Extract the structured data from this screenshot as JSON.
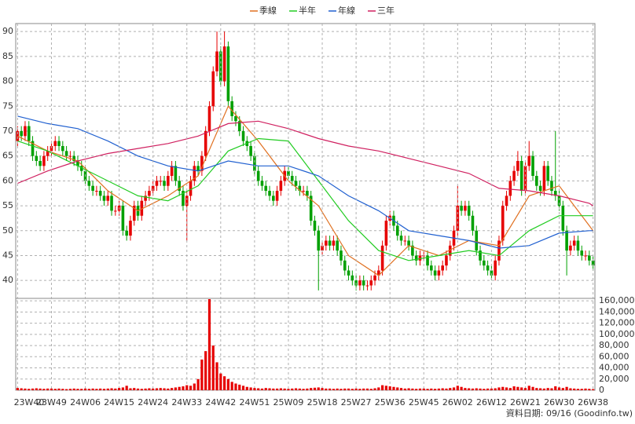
{
  "chart_data": [
    {
      "type": "candlestick",
      "up_color": "#e60000",
      "down_color": "#00a000",
      "ylim": [
        36.4,
        91.6
      ],
      "yticks": [
        40,
        45,
        50,
        55,
        60,
        65,
        70,
        75,
        80,
        85,
        90
      ],
      "grid": true,
      "legend": "top",
      "open": [
        68,
        70,
        69,
        71,
        68,
        65,
        64,
        63,
        65,
        66,
        67,
        68,
        67,
        66,
        65,
        65,
        64,
        63,
        62,
        60,
        59,
        58,
        58,
        57,
        56,
        57,
        54,
        54,
        55,
        50,
        49,
        52,
        55,
        53,
        56,
        57,
        58,
        59,
        60,
        60,
        59,
        61,
        63,
        60,
        58,
        55,
        57,
        60,
        63,
        62,
        65,
        70,
        75,
        82,
        86,
        80,
        87,
        76,
        73,
        72,
        70,
        68,
        67,
        65,
        62,
        60,
        59,
        58,
        57,
        56,
        58,
        60,
        62,
        61,
        60,
        59,
        58,
        58,
        57,
        52,
        50,
        46,
        47,
        48,
        47,
        48,
        46,
        44,
        42,
        41,
        40,
        39,
        40,
        39,
        39,
        40,
        41,
        42,
        47,
        52,
        53,
        51,
        49,
        48,
        48,
        47,
        45,
        44,
        45,
        45,
        43,
        42,
        41,
        42,
        43,
        45,
        47,
        50,
        55,
        54,
        55,
        53,
        50,
        46,
        44,
        43,
        42,
        41,
        44,
        48,
        55,
        57,
        60,
        62,
        64,
        58,
        63,
        65,
        61,
        59,
        58,
        63,
        60,
        58,
        57,
        55,
        50,
        46,
        47,
        48,
        46,
        45,
        45,
        44
      ],
      "high": [
        71,
        71,
        72,
        72,
        69,
        66,
        65,
        66,
        67,
        68,
        69,
        69,
        68,
        67,
        66,
        66,
        65,
        64,
        63,
        61,
        60,
        59,
        59,
        58,
        58,
        58,
        55,
        56,
        56,
        51,
        53,
        56,
        56,
        57,
        58,
        59,
        60,
        61,
        61,
        61,
        62,
        64,
        64,
        61,
        59,
        58,
        61,
        64,
        64,
        66,
        71,
        76,
        83,
        90,
        87,
        90,
        88,
        77,
        74,
        73,
        71,
        69,
        68,
        66,
        63,
        61,
        60,
        59,
        58,
        59,
        61,
        63,
        63,
        62,
        61,
        60,
        59,
        59,
        58,
        53,
        51,
        48,
        49,
        49,
        49,
        49,
        47,
        45,
        43,
        42,
        41,
        41,
        41,
        40,
        41,
        42,
        43,
        48,
        53,
        54,
        54,
        52,
        50,
        49,
        49,
        48,
        46,
        46,
        46,
        46,
        44,
        43,
        43,
        44,
        46,
        48,
        51,
        59,
        56,
        56,
        56,
        54,
        51,
        47,
        45,
        44,
        43,
        45,
        49,
        56,
        58,
        61,
        63,
        66,
        65,
        64,
        68,
        66,
        62,
        60,
        64,
        64,
        61,
        70,
        58,
        56,
        51,
        48,
        49,
        49,
        47,
        46,
        46,
        45
      ],
      "low": [
        67,
        68,
        68,
        67,
        64,
        63,
        62,
        62,
        64,
        65,
        66,
        66,
        65,
        64,
        64,
        63,
        62,
        61,
        59,
        58,
        57,
        57,
        56,
        55,
        55,
        53,
        53,
        53,
        49,
        48,
        48,
        51,
        52,
        52,
        55,
        56,
        57,
        58,
        59,
        58,
        58,
        60,
        59,
        57,
        54,
        48,
        56,
        59,
        61,
        61,
        64,
        69,
        74,
        81,
        79,
        79,
        75,
        72,
        71,
        69,
        67,
        66,
        64,
        61,
        59,
        58,
        57,
        56,
        55,
        55,
        57,
        59,
        60,
        59,
        58,
        57,
        57,
        56,
        51,
        49,
        38,
        45,
        46,
        46,
        46,
        45,
        43,
        41,
        40,
        39,
        38,
        38,
        38,
        38,
        38,
        39,
        40,
        41,
        46,
        51,
        50,
        48,
        47,
        47,
        46,
        44,
        43,
        43,
        44,
        42,
        41,
        40,
        40,
        41,
        42,
        44,
        46,
        49,
        53,
        53,
        52,
        49,
        45,
        43,
        42,
        41,
        40,
        40,
        43,
        47,
        54,
        56,
        59,
        61,
        57,
        57,
        62,
        60,
        58,
        57,
        57,
        59,
        57,
        56,
        54,
        49,
        41,
        45,
        46,
        45,
        44,
        44,
        43,
        42
      ],
      "close": [
        70,
        69,
        71,
        68,
        65,
        64,
        63,
        65,
        66,
        67,
        68,
        67,
        66,
        65,
        65,
        64,
        63,
        62,
        60,
        59,
        58,
        58,
        57,
        56,
        57,
        54,
        54,
        55,
        50,
        49,
        52,
        55,
        53,
        56,
        57,
        58,
        59,
        60,
        60,
        59,
        61,
        63,
        60,
        58,
        55,
        57,
        60,
        63,
        62,
        65,
        70,
        75,
        82,
        86,
        80,
        87,
        76,
        73,
        72,
        70,
        68,
        67,
        65,
        62,
        60,
        59,
        58,
        57,
        56,
        58,
        60,
        62,
        61,
        60,
        59,
        58,
        58,
        57,
        52,
        50,
        46,
        47,
        48,
        47,
        48,
        46,
        44,
        42,
        41,
        40,
        39,
        40,
        39,
        39,
        40,
        41,
        42,
        47,
        52,
        53,
        51,
        49,
        48,
        48,
        47,
        45,
        44,
        45,
        45,
        43,
        42,
        41,
        42,
        43,
        45,
        47,
        50,
        55,
        54,
        55,
        53,
        50,
        46,
        44,
        43,
        42,
        41,
        44,
        48,
        55,
        57,
        60,
        62,
        64,
        58,
        63,
        65,
        61,
        59,
        58,
        63,
        60,
        58,
        57,
        55,
        50,
        46,
        47,
        48,
        46,
        45,
        45,
        44,
        43
      ],
      "series": [
        {
          "name": "季線",
          "color": "#e07020",
          "x": [
            0,
            8,
            16,
            24,
            32,
            40,
            48,
            56,
            64,
            72,
            80,
            88,
            96,
            104,
            112,
            120,
            128,
            136,
            144,
            152,
            153
          ],
          "values": [
            69,
            66,
            64,
            58,
            54,
            57,
            61,
            75,
            68,
            60,
            55,
            45,
            41,
            47,
            45,
            48,
            47,
            57,
            59,
            51,
            50
          ]
        },
        {
          "name": "半年",
          "color": "#22cc22",
          "x": [
            0,
            8,
            16,
            24,
            32,
            40,
            48,
            56,
            64,
            72,
            80,
            88,
            96,
            104,
            112,
            120,
            128,
            136,
            144,
            152,
            153
          ],
          "values": [
            68,
            66,
            63,
            60,
            57,
            56,
            59,
            66,
            68.5,
            68,
            60,
            52,
            46,
            44,
            45,
            46,
            45,
            50,
            53,
            53,
            53
          ]
        },
        {
          "name": "年線",
          "color": "#2060d0",
          "x": [
            0,
            8,
            16,
            24,
            32,
            40,
            48,
            56,
            64,
            72,
            80,
            88,
            96,
            104,
            112,
            120,
            128,
            136,
            144,
            152,
            153
          ],
          "values": [
            73,
            71.5,
            70.5,
            68,
            65,
            63,
            62,
            64,
            63,
            63,
            61,
            57,
            54,
            50,
            49,
            48,
            46.5,
            47,
            49.5,
            50,
            50
          ]
        },
        {
          "name": "三年",
          "color": "#d02060",
          "x": [
            0,
            8,
            16,
            24,
            32,
            40,
            48,
            56,
            64,
            72,
            80,
            88,
            96,
            104,
            112,
            120,
            128,
            136,
            144,
            152,
            153
          ],
          "values": [
            59.5,
            62,
            64,
            65.5,
            66.5,
            67.5,
            69,
            71.5,
            72,
            70.5,
            68.5,
            67,
            66,
            64.5,
            63,
            61.5,
            58.5,
            58,
            57,
            55.5,
            55
          ]
        }
      ]
    },
    {
      "type": "bar",
      "color": "#e60000",
      "ylim": [
        0,
        163000
      ],
      "grid": true,
      "yticks": [
        0,
        {
          "value": 20000,
          "label": "20,000"
        },
        {
          "value": 40000,
          "label": "40,000"
        },
        {
          "value": 60000,
          "label": "60,000"
        },
        {
          "value": 80000,
          "label": "80,000"
        },
        {
          "value": 100000,
          "label": "100,000"
        },
        {
          "value": 120000,
          "label": "120,000"
        },
        {
          "value": 140000,
          "label": "140,000"
        },
        {
          "value": 160000,
          "label": "160,000"
        }
      ],
      "categories": [
        "23W40",
        null,
        null,
        null,
        null,
        null,
        null,
        null,
        null,
        "23W49",
        null,
        null,
        null,
        null,
        null,
        null,
        null,
        null,
        "24W06",
        null,
        null,
        null,
        null,
        null,
        null,
        null,
        null,
        "24W15",
        null,
        null,
        null,
        null,
        null,
        null,
        null,
        null,
        "24W24",
        null,
        null,
        null,
        null,
        null,
        null,
        null,
        null,
        "24W33",
        null,
        null,
        null,
        null,
        null,
        null,
        null,
        null,
        "24W42",
        null,
        null,
        null,
        null,
        null,
        null,
        null,
        null,
        "24W51",
        null,
        null,
        null,
        null,
        null,
        null,
        null,
        null,
        "25W09",
        null,
        null,
        null,
        null,
        null,
        null,
        null,
        null,
        "25W18",
        null,
        null,
        null,
        null,
        null,
        null,
        null,
        null,
        "25W27",
        null,
        null,
        null,
        null,
        null,
        null,
        null,
        null,
        "25W36",
        null,
        null,
        null,
        null,
        null,
        null,
        null,
        null,
        "25W45",
        null,
        null,
        null,
        null,
        null,
        null,
        null,
        null,
        "26W02",
        null,
        null,
        null,
        null,
        null,
        null,
        null,
        null,
        "26W12",
        null,
        null,
        null,
        null,
        null,
        null,
        null,
        null,
        "26W21",
        null,
        null,
        null,
        null,
        null,
        null,
        null,
        null,
        "26W30",
        null,
        null,
        null,
        null,
        null,
        null,
        null,
        null,
        "26W38"
      ],
      "values": [
        4000,
        3500,
        3000,
        2500,
        3000,
        3500,
        3000,
        2500,
        3000,
        3000,
        2500,
        3000,
        2500,
        2000,
        2500,
        3000,
        2500,
        2500,
        3000,
        2500,
        3000,
        2500,
        3000,
        2500,
        3000,
        3500,
        3000,
        4000,
        5000,
        8000,
        3500,
        4000,
        3000,
        2500,
        3000,
        3500,
        3000,
        3500,
        4000,
        3500,
        3000,
        4000,
        5000,
        6000,
        7000,
        9000,
        8000,
        12000,
        20000,
        55000,
        70000,
        163000,
        80000,
        50000,
        30000,
        25000,
        20000,
        15000,
        12000,
        10000,
        8000,
        6000,
        5000,
        4000,
        3500,
        3000,
        4000,
        3500,
        3000,
        3000,
        3500,
        3000,
        2500,
        3000,
        3500,
        3000,
        2500,
        3000,
        4000,
        4500,
        5000,
        4000,
        3000,
        3000,
        2500,
        3000,
        2500,
        3000,
        3000,
        2500,
        3000,
        2500,
        3000,
        3000,
        2500,
        3500,
        5000,
        9000,
        8000,
        7000,
        6000,
        5000,
        4000,
        3000,
        3500,
        3000,
        2500,
        3000,
        3000,
        2500,
        3000,
        2500,
        3000,
        3500,
        3000,
        4000,
        5000,
        8000,
        6000,
        4000,
        3500,
        3000,
        3500,
        3000,
        2500,
        3000,
        3000,
        3500,
        5000,
        6000,
        5000,
        4000,
        7000,
        6000,
        5000,
        4000,
        8000,
        6000,
        4000,
        3500,
        3000,
        4000,
        3500,
        7000,
        5000,
        4000,
        6000,
        3500,
        3000,
        2500,
        2500,
        3000,
        2500,
        2000
      ],
      "source": "資料日期: 09/16 (Goodinfo.tw)"
    }
  ]
}
